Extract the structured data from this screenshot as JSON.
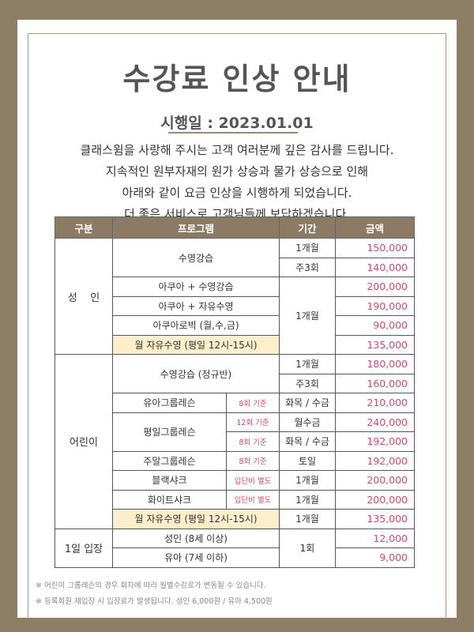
{
  "title": "수강료 인상 안내",
  "effective_date": "시행일 : 2023.01.01",
  "intro": [
    "클래스윔을 사랑해 주시는 고객 여러분께 깊은 감사를 드립니다.",
    "지속적인 원부자재의 원가 상승과 물가 상승으로 인해",
    "아래와 같이 요금 인상을 시행하게 되었습니다.",
    "더 좋은 서비스로 고객님들께 보답하겠습니다."
  ],
  "table": {
    "headers": [
      "구분",
      "프로그램",
      "기간",
      "금액"
    ],
    "adult": {
      "label": "성    인",
      "swim": "수영강습",
      "p1": "1개월",
      "a1": "150,000",
      "p2": "주3회",
      "a2": "140,000",
      "r3": "아쿠아 + 수영강습",
      "a3": "200,000",
      "r4": "아쿠아 + 자유수영",
      "a4": "190,000",
      "r5": "아쿠아로빅 (월,수,금)",
      "a5": "90,000",
      "r6": "월 자유수영 (평일 12시-15시)",
      "a6": "135,000",
      "p3": "1개월"
    },
    "child": {
      "label": "어린이",
      "swim": "수영강습 (정규반)",
      "p1": "1개월",
      "a1": "180,000",
      "p2": "주3회",
      "a2": "160,000",
      "r3": "유아그룹레슨",
      "n3": "8회 기준",
      "p3": "화목 / 수금",
      "a3": "210,000",
      "r4": "평일그룹레슨",
      "n4": "12회 기준",
      "p4": "월수금",
      "a4": "240,000",
      "n5": "8회 기준",
      "p5": "화목 / 수금",
      "a5": "192,000",
      "r6": "주말그룹레슨",
      "n6": "8회 기준",
      "p6": "토일",
      "a6": "192,000",
      "r7": "블랙샤크",
      "n7": "입단비 별도",
      "p7": "1개월",
      "a7": "200,000",
      "r8": "화이트샤크",
      "n8": "입단비 별도",
      "p8": "1개월",
      "a8": "200,000",
      "r9": "월 자유수영 (평일 12시-15시)",
      "p9": "1개월",
      "a9": "135,000"
    },
    "day": {
      "label": "1일 입장",
      "r1": "성인 (8세 이상)",
      "a1": "12,000",
      "r2": "유아 (7세 이하)",
      "a2": "9,000",
      "p": "1회"
    }
  },
  "notes": [
    "※ 어린이 그룹레슨의 경우 회차에 따라 월별수강료가 변동될 수 있습니다.",
    "※ 등록회원 재입장 시 입장료가 발생됩니다. 성인 6,000원 / 유아 4,500원"
  ],
  "colors": {
    "frame": "#8f7e66",
    "header": "#8b7b64",
    "price": "#d9496d",
    "highlight": "#fdefcc"
  }
}
